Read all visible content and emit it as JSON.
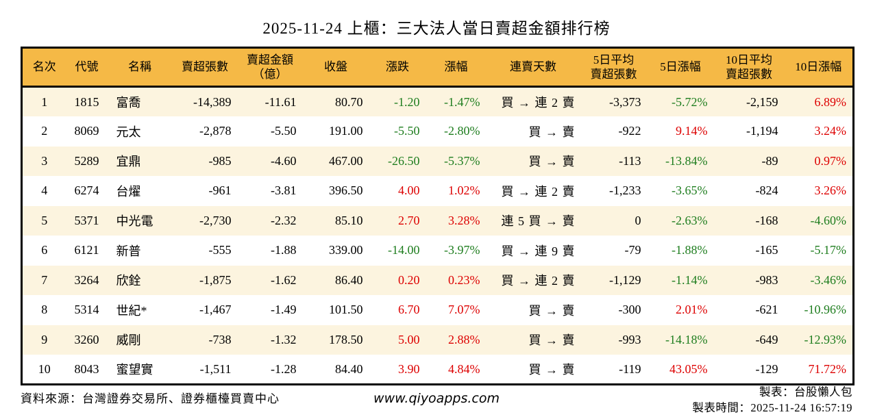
{
  "title": "2025-11-24 上櫃：三大法人當日賣超金額排行榜",
  "colors": {
    "header_bg": "#f5b946",
    "row_alt_bg": "#fcf4df",
    "up_red": "#dd0000",
    "down_green": "#1e7d1e"
  },
  "table": {
    "columns": [
      {
        "key": "rank",
        "lines": [
          "名次"
        ],
        "align": "center",
        "colored": false
      },
      {
        "key": "code",
        "lines": [
          "代號"
        ],
        "align": "center",
        "colored": false
      },
      {
        "key": "name",
        "lines": [
          "名稱"
        ],
        "align": "left",
        "colored": false
      },
      {
        "key": "sell_volume",
        "lines": [
          "賣超張數"
        ],
        "align": "right",
        "colored": false
      },
      {
        "key": "sell_amount",
        "lines": [
          "賣超金額",
          "（億）"
        ],
        "align": "right",
        "colored": false
      },
      {
        "key": "close",
        "lines": [
          "收盤"
        ],
        "align": "right",
        "colored": false
      },
      {
        "key": "change",
        "lines": [
          "漲跌"
        ],
        "align": "right",
        "colored": true
      },
      {
        "key": "change_pct",
        "lines": [
          "漲幅"
        ],
        "align": "right",
        "colored": true
      },
      {
        "key": "streak",
        "lines": [
          "連賣天數"
        ],
        "align": "streak",
        "colored": false
      },
      {
        "key": "avg5_volume",
        "lines": [
          "5日平均",
          "賣超張數"
        ],
        "align": "right",
        "colored": false
      },
      {
        "key": "pct5",
        "lines": [
          "5日漲幅"
        ],
        "align": "right",
        "colored": true
      },
      {
        "key": "avg10_volume",
        "lines": [
          "10日平均",
          "賣超張數"
        ],
        "align": "right",
        "colored": false
      },
      {
        "key": "pct10",
        "lines": [
          "10日漲幅"
        ],
        "align": "right",
        "colored": true
      }
    ]
  },
  "chart_data": {
    "type": "table",
    "title": "2025-11-24 上櫃：三大法人當日賣超金額排行榜",
    "columns": [
      "名次",
      "代號",
      "名稱",
      "賣超張數",
      "賣超金額（億）",
      "收盤",
      "漲跌",
      "漲幅",
      "連賣天數",
      "5日平均賣超張數",
      "5日漲幅",
      "10日平均賣超張數",
      "10日漲幅"
    ],
    "rows": [
      [
        "1",
        "1815",
        "富喬",
        "-14,389",
        "-11.61",
        "80.70",
        "-1.20",
        "-1.47%",
        "買 → 連 2 賣",
        "-3,373",
        "-5.72%",
        "-2,159",
        "6.89%"
      ],
      [
        "2",
        "8069",
        "元太",
        "-2,878",
        "-5.50",
        "191.00",
        "-5.50",
        "-2.80%",
        "買 → 賣",
        "-922",
        "9.14%",
        "-1,194",
        "3.24%"
      ],
      [
        "3",
        "5289",
        "宜鼎",
        "-985",
        "-4.60",
        "467.00",
        "-26.50",
        "-5.37%",
        "買 → 賣",
        "-113",
        "-13.84%",
        "-89",
        "0.97%"
      ],
      [
        "4",
        "6274",
        "台燿",
        "-961",
        "-3.81",
        "396.50",
        "4.00",
        "1.02%",
        "買 → 連 2 賣",
        "-1,233",
        "-3.65%",
        "-824",
        "3.26%"
      ],
      [
        "5",
        "5371",
        "中光電",
        "-2,730",
        "-2.32",
        "85.10",
        "2.70",
        "3.28%",
        "連 5 買 → 賣",
        "0",
        "-2.63%",
        "-168",
        "-4.60%"
      ],
      [
        "6",
        "6121",
        "新普",
        "-555",
        "-1.88",
        "339.00",
        "-14.00",
        "-3.97%",
        "買 → 連 9 賣",
        "-79",
        "-1.88%",
        "-165",
        "-5.17%"
      ],
      [
        "7",
        "3264",
        "欣銓",
        "-1,875",
        "-1.62",
        "86.40",
        "0.20",
        "0.23%",
        "買 → 連 2 賣",
        "-1,129",
        "-1.14%",
        "-983",
        "-3.46%"
      ],
      [
        "8",
        "5314",
        "世紀*",
        "-1,467",
        "-1.49",
        "101.50",
        "6.70",
        "7.07%",
        "買 → 賣",
        "-300",
        "2.01%",
        "-621",
        "-10.96%"
      ],
      [
        "9",
        "3260",
        "威剛",
        "-738",
        "-1.32",
        "178.50",
        "5.00",
        "2.88%",
        "買 → 賣",
        "-993",
        "-14.18%",
        "-649",
        "-12.93%"
      ],
      [
        "10",
        "8043",
        "蜜望實",
        "-1,511",
        "-1.28",
        "84.40",
        "3.90",
        "4.84%",
        "買 → 賣",
        "-119",
        "43.05%",
        "-129",
        "71.72%"
      ]
    ]
  },
  "footer": {
    "source": "資料來源：台灣證券交易所、證券櫃檯買賣中心",
    "website": "www.qiyoapps.com",
    "maker": "製表：台股懶人包",
    "made_time": "製表時間：2025-11-24 16:57:19"
  }
}
